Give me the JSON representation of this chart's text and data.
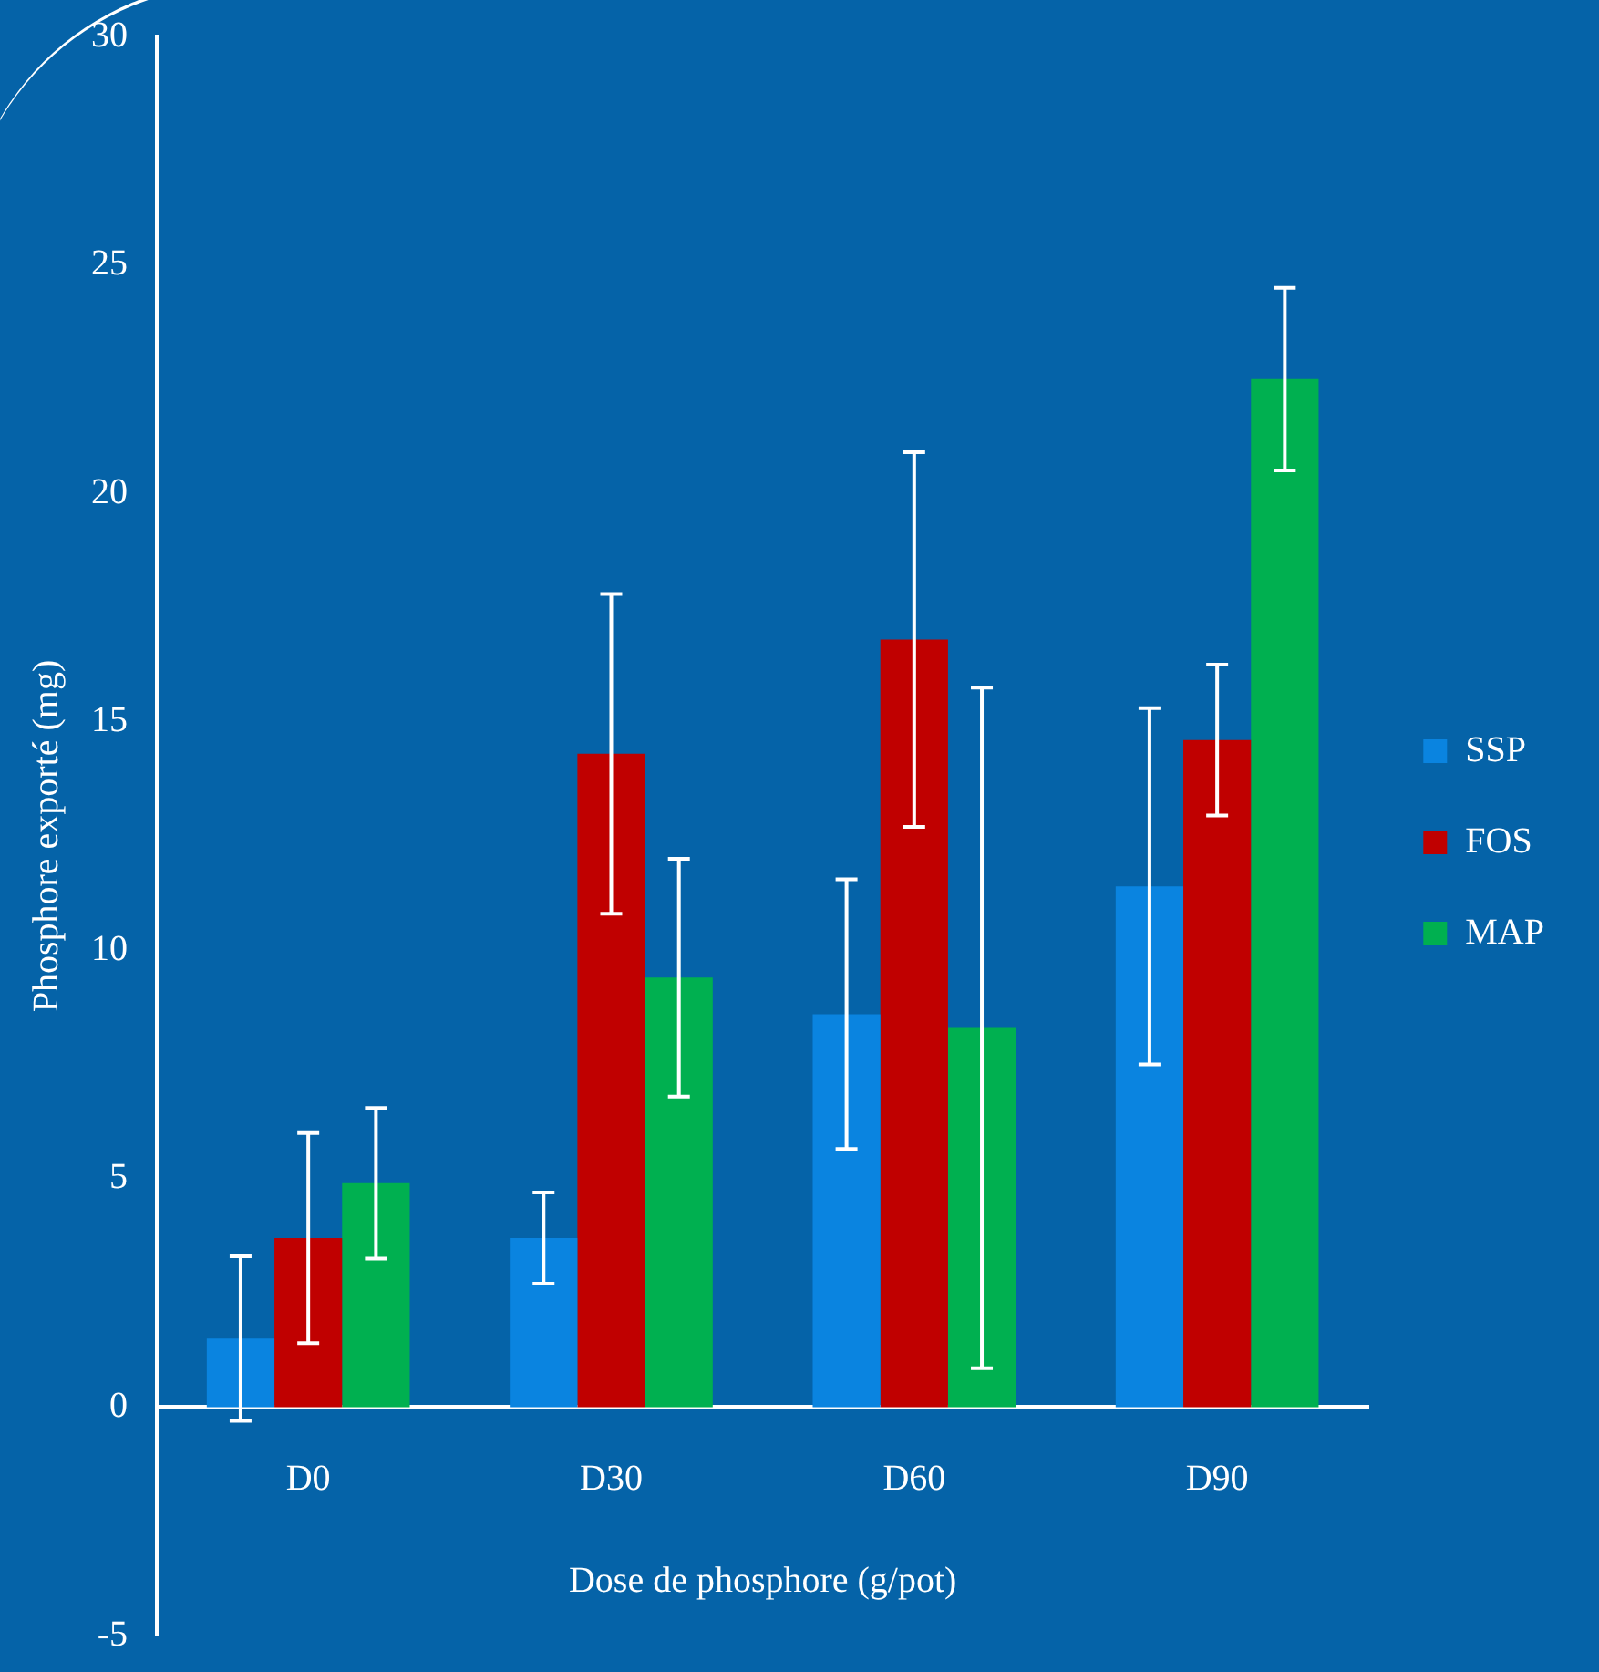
{
  "chart_data": {
    "type": "bar",
    "xlabel": "Dose de phosphore (g/pot)",
    "ylabel": "Phosphore exporté (mg)",
    "categories": [
      "D0",
      "D30",
      "D60",
      "D90"
    ],
    "series": [
      {
        "name": "SSP",
        "color": "#0a84e0",
        "values": [
          1.5,
          3.7,
          8.6,
          11.4
        ],
        "errors": [
          1.8,
          1.0,
          2.95,
          3.9
        ]
      },
      {
        "name": "FOS",
        "color": "#c00000",
        "values": [
          3.7,
          14.3,
          16.8,
          14.6
        ],
        "errors": [
          2.3,
          3.5,
          4.1,
          1.65
        ]
      },
      {
        "name": "MAP",
        "color": "#00b050",
        "values": [
          4.9,
          9.4,
          8.3,
          22.5
        ],
        "errors": [
          1.65,
          2.6,
          7.45,
          2.0
        ]
      }
    ],
    "ylim": [
      -5,
      30
    ],
    "yticks": [
      -5,
      0,
      5,
      10,
      15,
      20,
      25,
      30
    ],
    "grid": false,
    "legend": "right"
  }
}
